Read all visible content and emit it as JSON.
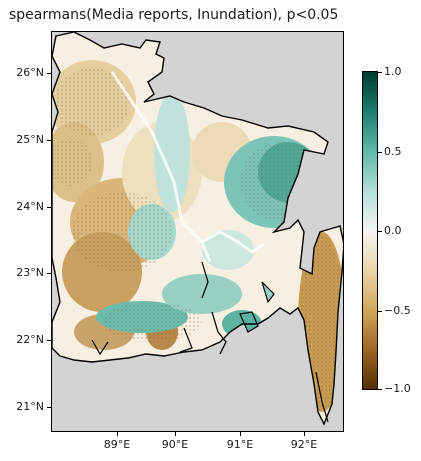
{
  "title": "spearmans(Media reports, Inundation), p<0.05",
  "lat_ticks": [
    "26°N",
    "25°N",
    "24°N",
    "23°N",
    "22°N",
    "21°N"
  ],
  "lon_ticks": [
    "89°E",
    "90°E",
    "91°E",
    "92°E"
  ],
  "colorbar": {
    "min": -1.0,
    "max": 1.0,
    "colormap": "BrBG",
    "labels": [
      "1.0",
      "0.5",
      "0.0",
      "−0.5",
      "−1.0"
    ]
  },
  "colors": {
    "background_land": "#d3d3d3",
    "coastline": "#000000",
    "negative": "#b07a2c",
    "neutral": "#f5f0e6",
    "positive": "#4aa898"
  }
}
